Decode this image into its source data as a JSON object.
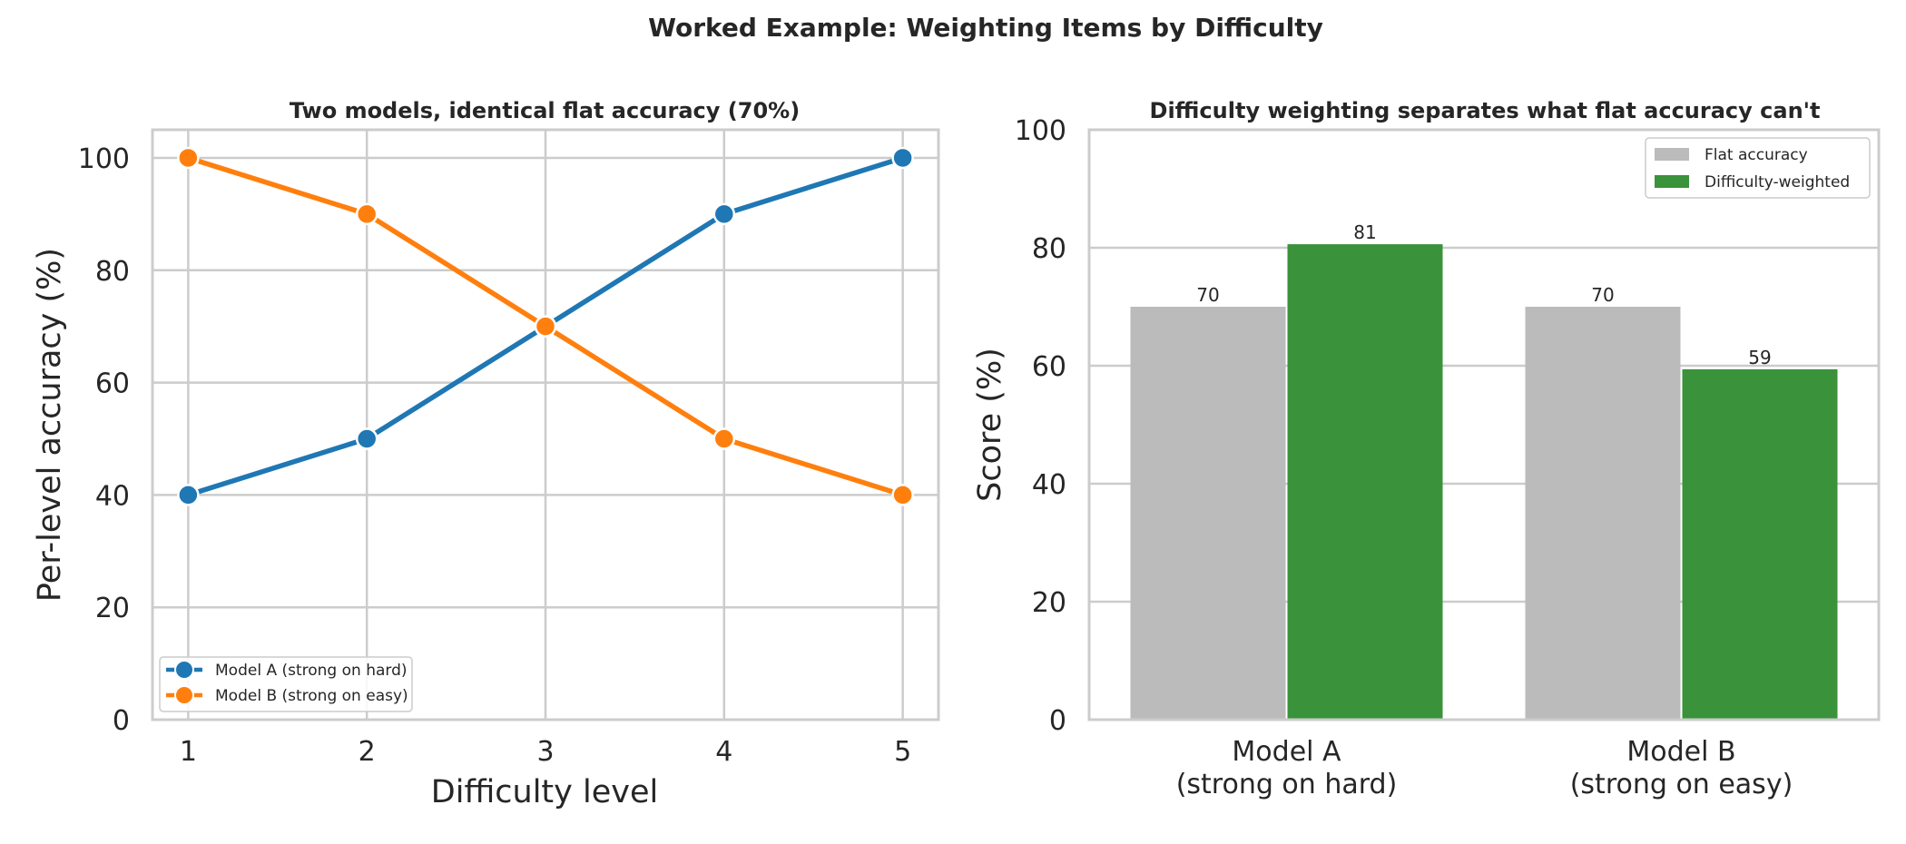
{
  "figure_title": "Worked Example: Weighting Items by Difficulty",
  "chart_data": [
    {
      "type": "line",
      "title": "Two models, identical flat accuracy (70%)",
      "xlabel": "Difficulty level",
      "ylabel": "Per-level accuracy (%)",
      "x": [
        1,
        2,
        3,
        4,
        5
      ],
      "x_tick_labels": [
        "1",
        "2",
        "3",
        "4",
        "5"
      ],
      "y_ticks": [
        0,
        20,
        40,
        60,
        80,
        100
      ],
      "xlim": [
        0.8,
        5.2
      ],
      "ylim": [
        0,
        105
      ],
      "grid": true,
      "legend_position": "lower-left",
      "series": [
        {
          "name": "Model A (strong on hard)",
          "values": [
            40,
            50,
            70,
            90,
            100
          ],
          "color": "#1f77b4",
          "marker": "circle"
        },
        {
          "name": "Model B (strong on easy)",
          "values": [
            100,
            90,
            70,
            50,
            40
          ],
          "color": "#ff7f0e",
          "marker": "circle"
        }
      ]
    },
    {
      "type": "bar",
      "title": "Difficulty weighting separates what flat accuracy can't",
      "xlabel": "",
      "ylabel": "Score (%)",
      "categories": [
        [
          "Model A",
          "(strong on hard)"
        ],
        [
          "Model B",
          "(strong on easy)"
        ]
      ],
      "y_ticks": [
        0,
        20,
        40,
        60,
        80,
        100
      ],
      "ylim": [
        0,
        100
      ],
      "grid": true,
      "legend_position": "top-right",
      "series": [
        {
          "name": "Flat accuracy",
          "values": [
            70,
            70
          ],
          "labels": [
            "70",
            "70"
          ],
          "color": "#bbbbbb"
        },
        {
          "name": "Difficulty-weighted",
          "values": [
            80.6,
            59.4
          ],
          "labels": [
            "81",
            "59"
          ],
          "color": "#3a923a"
        }
      ]
    }
  ]
}
